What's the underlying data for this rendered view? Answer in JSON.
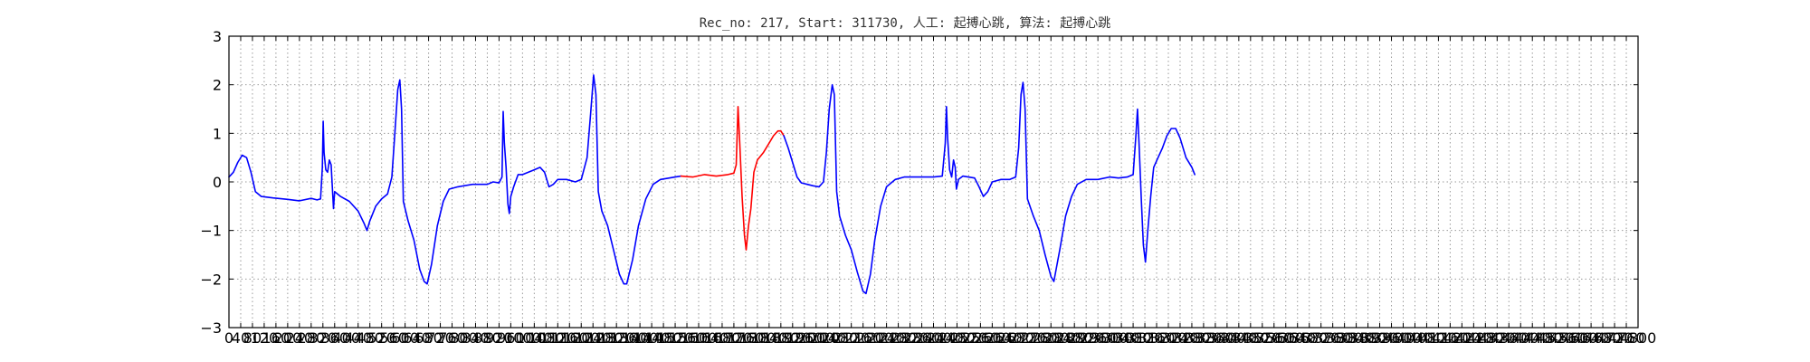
{
  "chart_data": {
    "type": "line",
    "title": "Rec_no: 217, Start: 311730, 人工: 起搏心跳, 算法: 起搏心跳",
    "xlabel": "",
    "ylabel": "",
    "xlim": [
      0,
      4800
    ],
    "ylim": [
      -3,
      3
    ],
    "grid": true,
    "xticks": [
      0,
      40,
      80,
      120,
      160,
      200,
      240,
      280,
      320,
      360,
      400,
      440,
      480,
      520,
      560,
      600,
      640,
      680,
      720,
      760,
      800,
      840,
      880,
      920,
      960,
      1000,
      1040,
      1080,
      1120,
      1160,
      1200,
      1240,
      1280,
      1320,
      1360,
      1400,
      1440,
      1480,
      1520,
      1560,
      1600,
      1640,
      1680,
      1720,
      1760,
      1800,
      1840,
      1880,
      1920,
      1960,
      2000,
      2040,
      2080,
      2120,
      2160,
      2200,
      2240,
      2280,
      2320,
      2360,
      2400,
      2440,
      2480,
      2520,
      2560,
      2600,
      2640,
      2680,
      2720,
      2760,
      2800,
      2840,
      2880,
      2920,
      2960,
      3000,
      3040,
      3080,
      3120,
      3160,
      3200,
      3240,
      3280,
      3320,
      3360,
      3400,
      3440,
      3480,
      3520,
      3560,
      3600,
      3640,
      3680,
      3720,
      3760,
      3800,
      3840,
      3880,
      3920,
      3960,
      4000,
      4040,
      4080,
      4120,
      4160,
      4200,
      4240,
      4280,
      4320,
      4360,
      4400,
      4440,
      4480,
      4520,
      4560,
      4600,
      4640,
      4680,
      4720,
      4760,
      4800
    ],
    "xtick_labels": [
      "0",
      "40",
      "80",
      "120",
      "160",
      "200",
      "240",
      "280",
      "320",
      "360",
      "400",
      "440",
      "480",
      "520",
      "560",
      "600",
      "640",
      "680",
      "720",
      "760",
      "800",
      "840",
      "880",
      "920",
      "960",
      "1000",
      "1040",
      "1080",
      "1120",
      "1160",
      "1200",
      "1240",
      "1280",
      "1320",
      "1360",
      "1400",
      "1440",
      "1480",
      "1520",
      "1560",
      "1600",
      "1640",
      "1680",
      "1720",
      "1760",
      "1800",
      "1840",
      "1880",
      "1920",
      "1960",
      "2000",
      "2040",
      "2080",
      "2120",
      "2160",
      "2200",
      "2240",
      "2280",
      "2320",
      "2360",
      "2400",
      "2440",
      "2480",
      "2520",
      "2560",
      "2600",
      "2640",
      "2680",
      "2720",
      "2760",
      "2800",
      "2840",
      "2880",
      "2920",
      "2960",
      "3000",
      "3040",
      "3080",
      "3120",
      "3160",
      "3200",
      "3240",
      "3280",
      "3320",
      "3360",
      "3400",
      "3440",
      "3480",
      "3520",
      "3560",
      "3600",
      "3640",
      "3680",
      "3720",
      "3760",
      "3800",
      "3840",
      "3880",
      "3920",
      "3960",
      "4000",
      "4040",
      "4080",
      "4120",
      "4160",
      "4200",
      "4240",
      "4280",
      "4320",
      "4360",
      "4400",
      "4440",
      "4480",
      "4520",
      "4560",
      "4600",
      "4640",
      "4680",
      "4720",
      "4760",
      "4800"
    ],
    "yticks": [
      -3,
      -2,
      -1,
      0,
      1,
      2,
      3
    ],
    "ytick_labels": [
      "−3",
      "−2",
      "−1",
      "0",
      "1",
      "2",
      "3"
    ],
    "series": [
      {
        "color": "#0000ff",
        "points": [
          [
            0,
            0.1
          ],
          [
            15,
            0.2
          ],
          [
            30,
            0.4
          ],
          [
            45,
            0.55
          ],
          [
            60,
            0.5
          ],
          [
            75,
            0.2
          ],
          [
            90,
            -0.2
          ],
          [
            110,
            -0.3
          ],
          [
            150,
            -0.33
          ],
          [
            200,
            -0.36
          ],
          [
            240,
            -0.39
          ],
          [
            280,
            -0.34
          ],
          [
            300,
            -0.37
          ],
          [
            312,
            -0.35
          ],
          [
            318,
            0.3
          ],
          [
            321,
            1.25
          ],
          [
            324,
            0.6
          ],
          [
            330,
            0.25
          ],
          [
            336,
            0.2
          ],
          [
            342,
            0.45
          ],
          [
            348,
            0.35
          ],
          [
            352,
            -0.1
          ],
          [
            356,
            -0.55
          ],
          [
            360,
            -0.2
          ],
          [
            380,
            -0.3
          ],
          [
            410,
            -0.4
          ],
          [
            440,
            -0.6
          ],
          [
            460,
            -0.85
          ],
          [
            470,
            -1.0
          ],
          [
            480,
            -0.8
          ],
          [
            500,
            -0.5
          ],
          [
            520,
            -0.35
          ],
          [
            540,
            -0.25
          ],
          [
            555,
            0.1
          ],
          [
            565,
            1.0
          ],
          [
            575,
            1.9
          ],
          [
            582,
            2.1
          ],
          [
            588,
            1.5
          ],
          [
            594,
            -0.4
          ],
          [
            610,
            -0.8
          ],
          [
            630,
            -1.2
          ],
          [
            650,
            -1.8
          ],
          [
            665,
            -2.05
          ],
          [
            675,
            -2.1
          ],
          [
            690,
            -1.7
          ],
          [
            710,
            -0.9
          ],
          [
            730,
            -0.4
          ],
          [
            750,
            -0.15
          ],
          [
            780,
            -0.1
          ],
          [
            830,
            -0.05
          ],
          [
            880,
            -0.05
          ],
          [
            900,
            0.0
          ],
          [
            920,
            -0.02
          ],
          [
            930,
            0.1
          ],
          [
            934,
            1.45
          ],
          [
            938,
            0.8
          ],
          [
            944,
            0.3
          ],
          [
            950,
            -0.45
          ],
          [
            955,
            -0.65
          ],
          [
            960,
            -0.3
          ],
          [
            970,
            -0.1
          ],
          [
            985,
            0.15
          ],
          [
            1000,
            0.15
          ],
          [
            1020,
            0.2
          ],
          [
            1040,
            0.25
          ],
          [
            1060,
            0.3
          ],
          [
            1075,
            0.2
          ],
          [
            1090,
            -0.1
          ],
          [
            1105,
            -0.05
          ],
          [
            1120,
            0.05
          ],
          [
            1150,
            0.05
          ],
          [
            1180,
            0.0
          ],
          [
            1200,
            0.05
          ],
          [
            1220,
            0.5
          ],
          [
            1232,
            1.4
          ],
          [
            1242,
            2.2
          ],
          [
            1250,
            1.8
          ],
          [
            1258,
            -0.2
          ],
          [
            1270,
            -0.6
          ],
          [
            1290,
            -0.9
          ],
          [
            1310,
            -1.4
          ],
          [
            1330,
            -1.9
          ],
          [
            1345,
            -2.1
          ],
          [
            1355,
            -2.1
          ],
          [
            1375,
            -1.6
          ],
          [
            1395,
            -0.9
          ],
          [
            1420,
            -0.35
          ],
          [
            1445,
            -0.05
          ],
          [
            1470,
            0.05
          ],
          [
            1500,
            0.08
          ],
          [
            1520,
            0.1
          ],
          [
            1540,
            0.12
          ]
        ]
      },
      {
        "color": "#ff0000",
        "points": [
          [
            1540,
            0.12
          ],
          [
            1580,
            0.1
          ],
          [
            1620,
            0.15
          ],
          [
            1660,
            0.12
          ],
          [
            1700,
            0.15
          ],
          [
            1720,
            0.18
          ],
          [
            1728,
            0.35
          ],
          [
            1734,
            1.55
          ],
          [
            1740,
            0.8
          ],
          [
            1748,
            -0.3
          ],
          [
            1756,
            -1.1
          ],
          [
            1762,
            -1.4
          ],
          [
            1770,
            -0.9
          ],
          [
            1778,
            -0.55
          ],
          [
            1788,
            0.2
          ],
          [
            1800,
            0.45
          ],
          [
            1820,
            0.6
          ],
          [
            1840,
            0.8
          ],
          [
            1855,
            0.95
          ],
          [
            1870,
            1.05
          ],
          [
            1880,
            1.05
          ],
          [
            1890,
            0.95
          ]
        ]
      },
      {
        "color": "#0000ff",
        "points": [
          [
            1890,
            0.95
          ],
          [
            1905,
            0.7
          ],
          [
            1920,
            0.4
          ],
          [
            1935,
            0.1
          ],
          [
            1950,
            -0.02
          ],
          [
            1970,
            -0.05
          ],
          [
            1990,
            -0.08
          ],
          [
            2010,
            -0.1
          ],
          [
            2025,
            0.0
          ],
          [
            2035,
            0.6
          ],
          [
            2045,
            1.5
          ],
          [
            2055,
            2.0
          ],
          [
            2062,
            1.8
          ],
          [
            2070,
            -0.2
          ],
          [
            2080,
            -0.7
          ],
          [
            2100,
            -1.1
          ],
          [
            2120,
            -1.4
          ],
          [
            2140,
            -1.85
          ],
          [
            2160,
            -2.25
          ],
          [
            2170,
            -2.3
          ],
          [
            2185,
            -1.9
          ],
          [
            2200,
            -1.2
          ],
          [
            2220,
            -0.5
          ],
          [
            2240,
            -0.1
          ],
          [
            2270,
            0.05
          ],
          [
            2300,
            0.1
          ],
          [
            2350,
            0.1
          ],
          [
            2400,
            0.1
          ],
          [
            2430,
            0.12
          ],
          [
            2440,
            0.8
          ],
          [
            2444,
            1.55
          ],
          [
            2448,
            0.9
          ],
          [
            2455,
            0.25
          ],
          [
            2462,
            0.1
          ],
          [
            2468,
            0.45
          ],
          [
            2474,
            0.3
          ],
          [
            2478,
            -0.15
          ],
          [
            2485,
            0.05
          ],
          [
            2500,
            0.12
          ],
          [
            2540,
            0.08
          ],
          [
            2555,
            -0.1
          ],
          [
            2570,
            -0.3
          ],
          [
            2585,
            -0.2
          ],
          [
            2600,
            0.0
          ],
          [
            2630,
            0.05
          ],
          [
            2660,
            0.05
          ],
          [
            2680,
            0.1
          ],
          [
            2690,
            0.7
          ],
          [
            2698,
            1.8
          ],
          [
            2705,
            2.05
          ],
          [
            2712,
            1.5
          ],
          [
            2720,
            -0.35
          ],
          [
            2740,
            -0.7
          ],
          [
            2760,
            -1.0
          ],
          [
            2780,
            -1.5
          ],
          [
            2800,
            -1.95
          ],
          [
            2810,
            -2.05
          ],
          [
            2830,
            -1.4
          ],
          [
            2850,
            -0.7
          ],
          [
            2870,
            -0.3
          ],
          [
            2890,
            -0.05
          ],
          [
            2920,
            0.05
          ],
          [
            2960,
            0.05
          ],
          [
            3000,
            0.1
          ],
          [
            3030,
            0.08
          ],
          [
            3060,
            0.1
          ],
          [
            3080,
            0.15
          ],
          [
            3090,
            1.0
          ],
          [
            3095,
            1.5
          ],
          [
            3100,
            0.8
          ],
          [
            3108,
            -0.4
          ],
          [
            3115,
            -1.3
          ],
          [
            3122,
            -1.65
          ],
          [
            3130,
            -1.0
          ],
          [
            3140,
            -0.3
          ],
          [
            3150,
            0.3
          ],
          [
            3165,
            0.5
          ],
          [
            3180,
            0.7
          ],
          [
            3195,
            0.95
          ],
          [
            3210,
            1.1
          ],
          [
            3225,
            1.1
          ],
          [
            3240,
            0.9
          ],
          [
            3260,
            0.5
          ],
          [
            3280,
            0.3
          ],
          [
            3290,
            0.15
          ]
        ]
      }
    ]
  }
}
